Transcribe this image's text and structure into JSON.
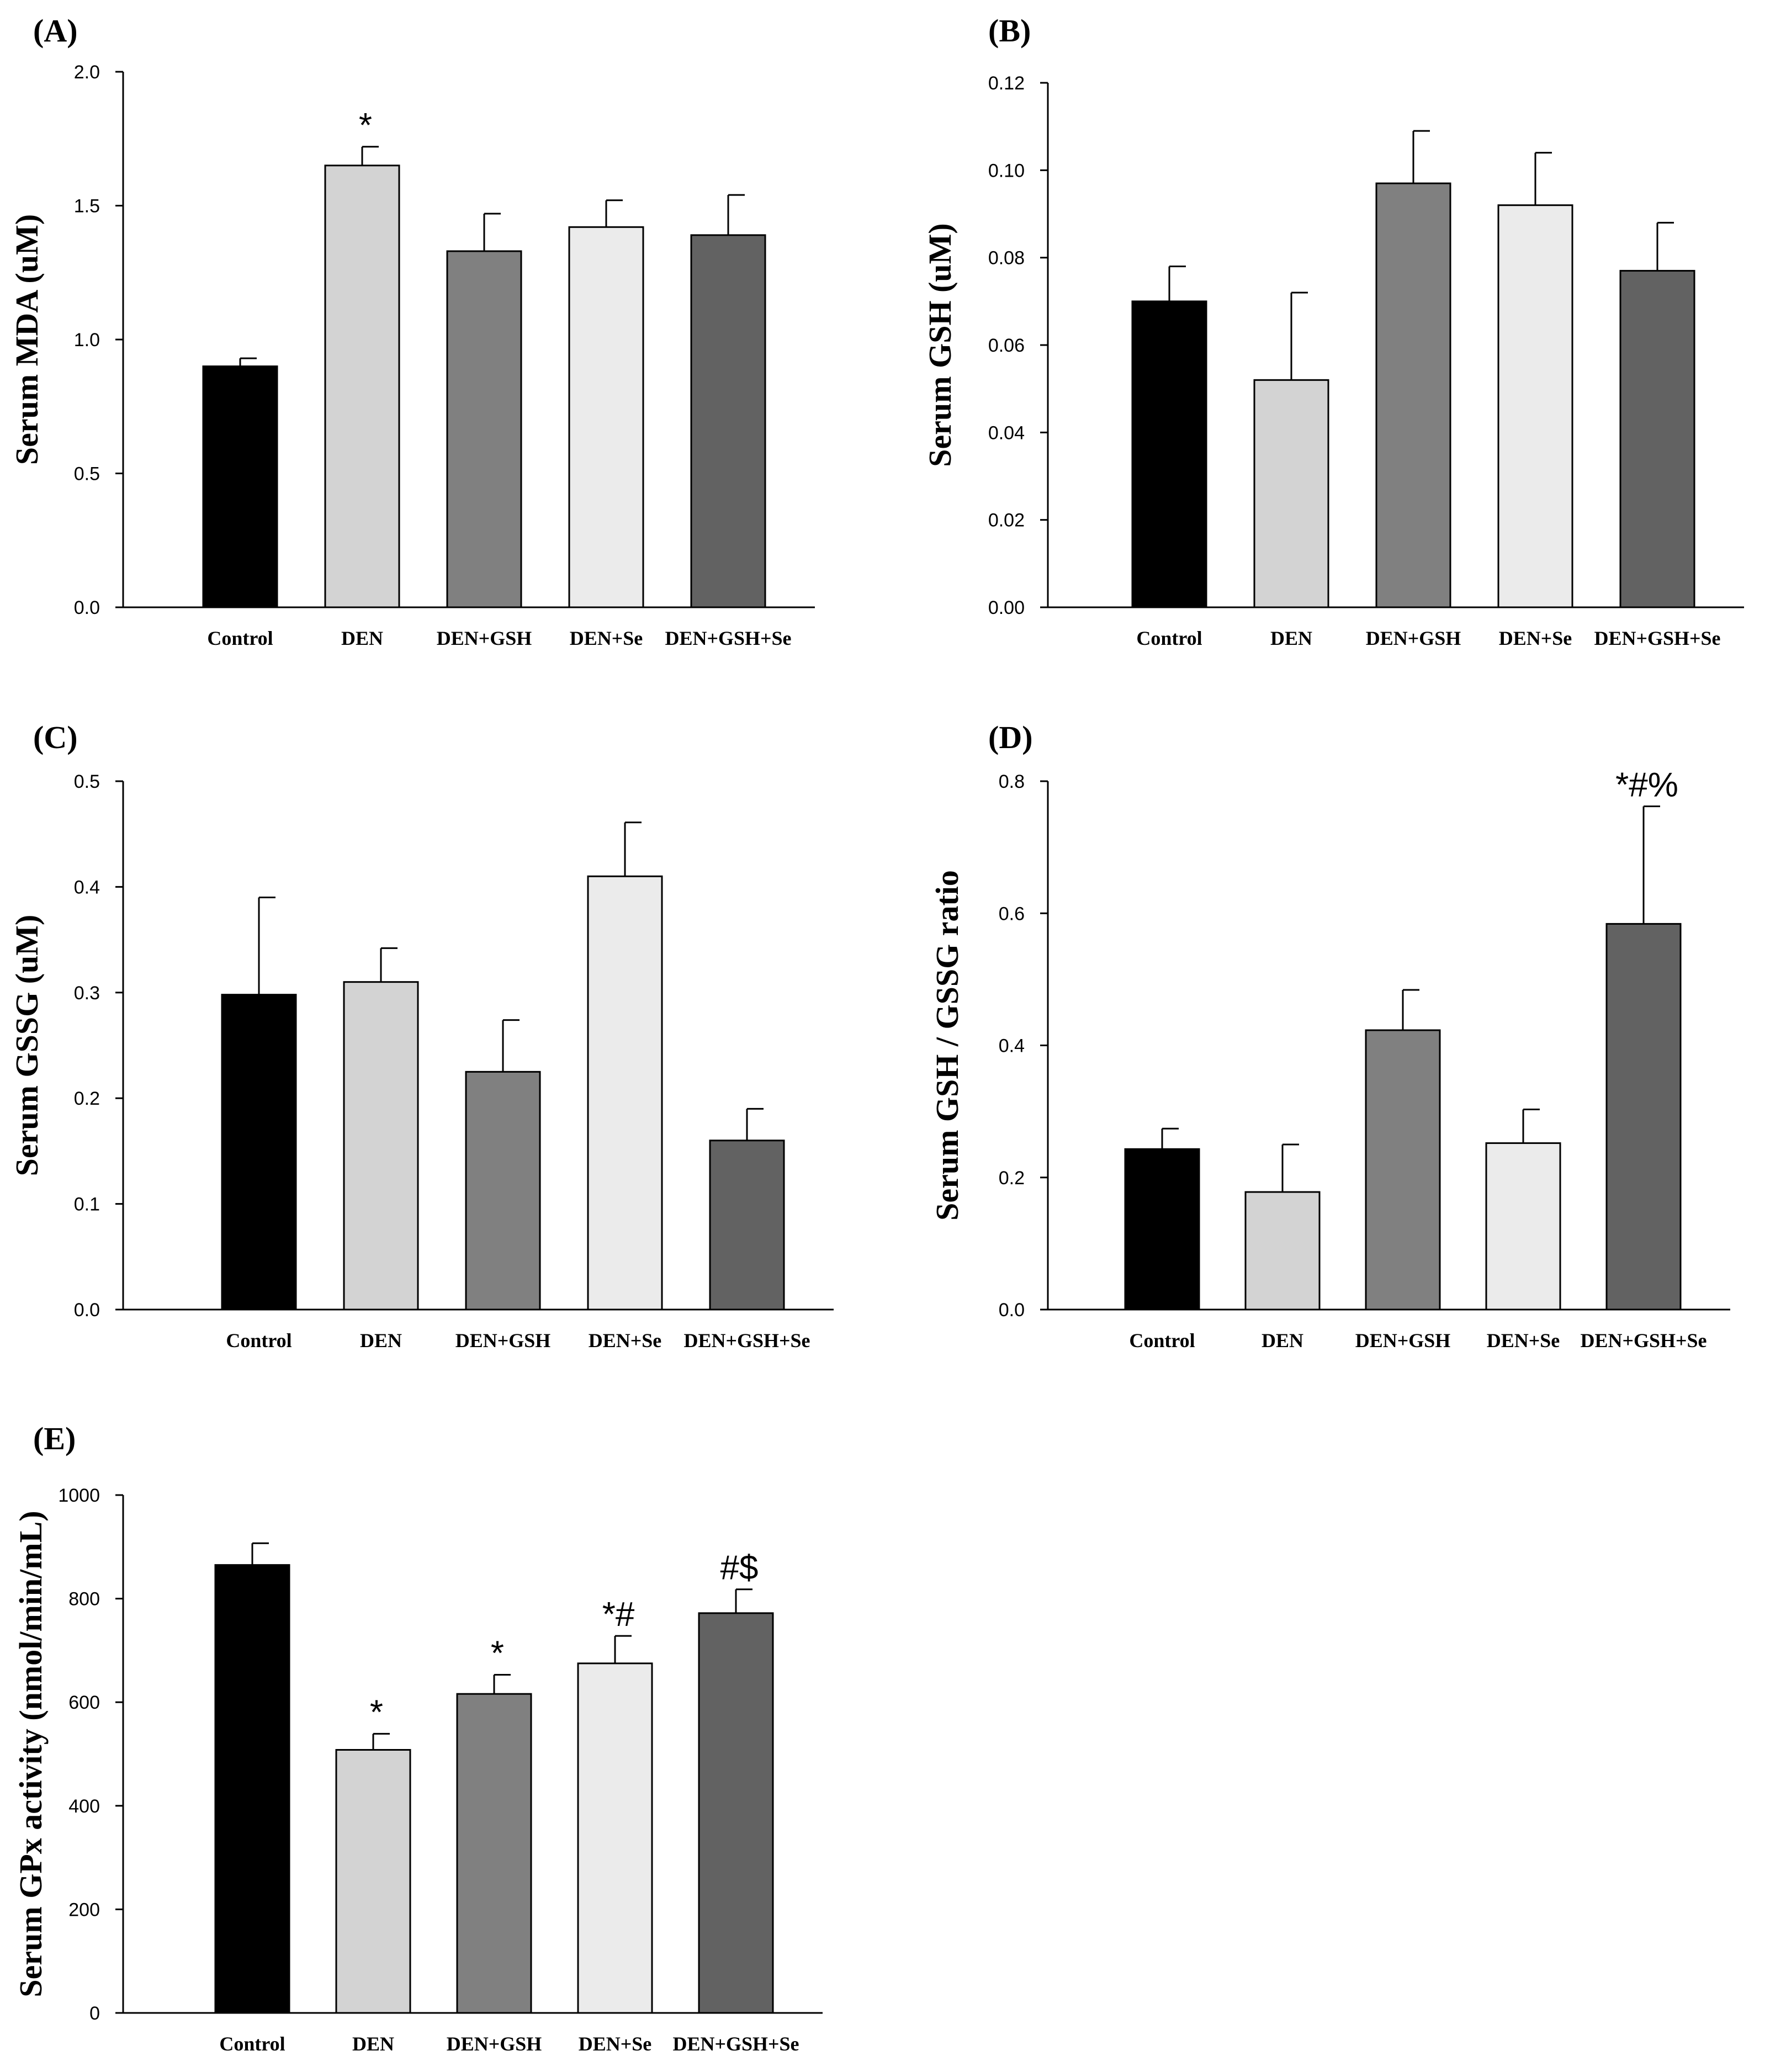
{
  "chart_data": [
    {
      "panel": "(A)",
      "type": "bar",
      "ylabel": "Serum MDA (uM)",
      "categories": [
        "Control",
        "DEN",
        "DEN+GSH",
        "DEN+Se",
        "DEN+GSH+Se"
      ],
      "values": [
        0.9,
        1.65,
        1.33,
        1.42,
        1.39
      ],
      "errors": [
        0.03,
        0.07,
        0.14,
        0.1,
        0.15
      ],
      "annotations": [
        "",
        "*",
        "",
        "",
        ""
      ],
      "ylim": [
        0,
        2.0
      ],
      "yticks": [
        "0.0",
        "0.5",
        "1.0",
        "1.5",
        "2.0"
      ],
      "colors": [
        "#000000",
        "#d3d3d3",
        "#808080",
        "#ebebeb",
        "#626262"
      ]
    },
    {
      "panel": "(B)",
      "type": "bar",
      "ylabel": "Serum GSH (uM)",
      "categories": [
        "Control",
        "DEN",
        "DEN+GSH",
        "DEN+Se",
        "DEN+GSH+Se"
      ],
      "values": [
        0.07,
        0.052,
        0.097,
        0.092,
        0.077
      ],
      "errors": [
        0.008,
        0.02,
        0.012,
        0.012,
        0.011
      ],
      "annotations": [
        "",
        "",
        "",
        "",
        ""
      ],
      "ylim": [
        0,
        0.12
      ],
      "yticks": [
        "0.00",
        "0.02",
        "0.04",
        "0.06",
        "0.08",
        "0.10",
        "0.12"
      ],
      "colors": [
        "#000000",
        "#d3d3d3",
        "#808080",
        "#ebebeb",
        "#626262"
      ]
    },
    {
      "panel": "(C)",
      "type": "bar",
      "ylabel": "Serum GSSG (uM)",
      "categories": [
        "Control",
        "DEN",
        "DEN+GSH",
        "DEN+Se",
        "DEN+GSH+Se"
      ],
      "values": [
        0.298,
        0.31,
        0.225,
        0.41,
        0.16
      ],
      "errors": [
        0.092,
        0.032,
        0.049,
        0.051,
        0.03
      ],
      "annotations": [
        "",
        "",
        "",
        "",
        ""
      ],
      "ylim": [
        0,
        0.5
      ],
      "yticks": [
        "0.0",
        "0.1",
        "0.2",
        "0.3",
        "0.4",
        "0.5"
      ],
      "colors": [
        "#000000",
        "#d3d3d3",
        "#808080",
        "#ebebeb",
        "#626262"
      ]
    },
    {
      "panel": "(D)",
      "type": "bar",
      "ylabel": "Serum GSH / GSSG ratio",
      "categories": [
        "Control",
        "DEN",
        "DEN+GSH",
        "DEN+Se",
        "DEN+GSH+Se"
      ],
      "values": [
        0.243,
        0.178,
        0.423,
        0.252,
        0.584
      ],
      "errors": [
        0.031,
        0.072,
        0.061,
        0.051,
        0.178
      ],
      "annotations": [
        "",
        "",
        "",
        "",
        "*#%"
      ],
      "ylim": [
        0,
        0.8
      ],
      "yticks": [
        "0.0",
        "0.2",
        "0.4",
        "0.6",
        "0.8"
      ],
      "colors": [
        "#000000",
        "#d3d3d3",
        "#808080",
        "#ebebeb",
        "#626262"
      ]
    },
    {
      "panel": "(E)",
      "type": "bar",
      "ylabel": "Serum GPx activity (nmol/min/mL)",
      "categories": [
        "Control",
        "DEN",
        "DEN+GSH",
        "DEN+Se",
        "DEN+GSH+Se"
      ],
      "values": [
        865,
        508,
        616,
        675,
        772
      ],
      "errors": [
        42,
        31,
        37,
        53,
        46
      ],
      "annotations": [
        "",
        "*",
        "*",
        "*#",
        "#$"
      ],
      "ylim": [
        0,
        1000
      ],
      "yticks": [
        "0",
        "200",
        "400",
        "600",
        "800",
        "1000"
      ],
      "colors": [
        "#000000",
        "#d3d3d3",
        "#808080",
        "#ebebeb",
        "#626262"
      ]
    }
  ]
}
